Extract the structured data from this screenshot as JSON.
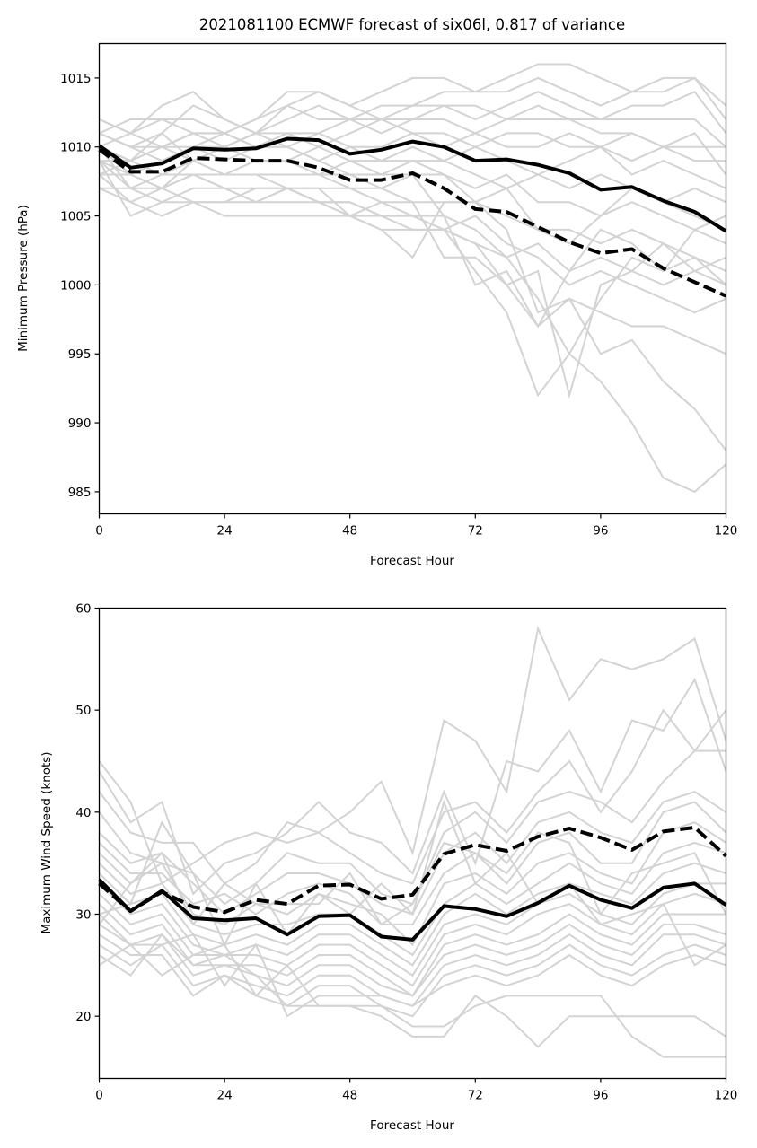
{
  "chart_data": [
    {
      "type": "line",
      "title": "2021081100 ECMWF forecast of six06l, 0.817 of variance",
      "xlabel": "Forecast Hour",
      "ylabel": "Minimum Pressure (hPa)",
      "xlim": [
        0,
        120
      ],
      "ylim": [
        983.4,
        1017.5
      ],
      "xticks": [
        0,
        24,
        48,
        72,
        96,
        120
      ],
      "yticks": [
        985,
        990,
        995,
        1000,
        1005,
        1010,
        1015
      ],
      "grid": false,
      "x": [
        0,
        6,
        12,
        18,
        24,
        30,
        36,
        42,
        48,
        54,
        60,
        66,
        72,
        78,
        84,
        90,
        96,
        102,
        108,
        114,
        120
      ],
      "series": [
        {
          "name": "solid",
          "style": "solid",
          "color": "#000000",
          "values": [
            1010.1,
            1008.5,
            1008.8,
            1009.9,
            1009.8,
            1009.9,
            1010.6,
            1010.5,
            1009.5,
            1009.8,
            1010.4,
            1010.0,
            1009.0,
            1009.1,
            1008.7,
            1008.1,
            1006.9,
            1007.1,
            1006.1,
            1005.3,
            1003.9
          ]
        },
        {
          "name": "dashed",
          "style": "dashed",
          "color": "#000000",
          "values": [
            1009.8,
            1008.2,
            1008.2,
            1009.2,
            1009.1,
            1009.0,
            1009.0,
            1008.5,
            1007.6,
            1007.6,
            1008.1,
            1007.0,
            1005.5,
            1005.3,
            1004.2,
            1003.1,
            1002.3,
            1002.6,
            1001.2,
            1000.2,
            999.2
          ]
        }
      ],
      "ensemble_color": "#d3d3d3",
      "ensemble": [
        [
          1012,
          1011,
          1013,
          1014,
          1012,
          1011,
          1013,
          1014,
          1013,
          1012,
          1013,
          1014,
          1014,
          1015,
          1016,
          1016,
          1015,
          1014,
          1014,
          1015,
          1013
        ],
        [
          1011,
          1012,
          1012,
          1012,
          1011,
          1012,
          1014,
          1014,
          1013,
          1014,
          1015,
          1015,
          1014,
          1014,
          1015,
          1014,
          1013,
          1014,
          1015,
          1015,
          1012
        ],
        [
          1011,
          1010,
          1011,
          1013,
          1012,
          1011,
          1012,
          1013,
          1012,
          1013,
          1013,
          1013,
          1012,
          1013,
          1014,
          1013,
          1012,
          1013,
          1013,
          1014,
          1011
        ],
        [
          1010,
          1011,
          1012,
          1011,
          1011,
          1012,
          1013,
          1012,
          1012,
          1012,
          1012,
          1013,
          1013,
          1012,
          1012,
          1012,
          1012,
          1012,
          1012,
          1012,
          1010
        ],
        [
          1011,
          1010,
          1010,
          1011,
          1010,
          1011,
          1011,
          1011,
          1012,
          1011,
          1012,
          1012,
          1011,
          1012,
          1013,
          1012,
          1011,
          1011,
          1010,
          1010,
          1010
        ],
        [
          1009,
          1009,
          1010,
          1010,
          1011,
          1010,
          1011,
          1010,
          1011,
          1012,
          1011,
          1011,
          1010,
          1011,
          1011,
          1010,
          1010,
          1011,
          1010,
          1009,
          1009
        ],
        [
          1008,
          1009,
          1011,
          1009,
          1010,
          1011,
          1010,
          1011,
          1010,
          1010,
          1011,
          1010,
          1011,
          1010,
          1010,
          1011,
          1010,
          1009,
          1010,
          1011,
          1008
        ],
        [
          1010,
          1008,
          1009,
          1010,
          1009,
          1010,
          1010,
          1009,
          1010,
          1009,
          1010,
          1009,
          1010,
          1009,
          1008,
          1009,
          1010,
          1008,
          1009,
          1008,
          1007
        ],
        [
          1009,
          1007,
          1008,
          1008,
          1008,
          1009,
          1009,
          1008,
          1009,
          1008,
          1009,
          1009,
          1008,
          1007,
          1008,
          1007,
          1008,
          1007,
          1006,
          1007,
          1006
        ],
        [
          1008,
          1008,
          1007,
          1009,
          1008,
          1008,
          1008,
          1008,
          1008,
          1007,
          1008,
          1008,
          1007,
          1008,
          1006,
          1006,
          1005,
          1006,
          1005,
          1004,
          1003
        ],
        [
          1007,
          1007,
          1006,
          1007,
          1007,
          1006,
          1007,
          1007,
          1007,
          1006,
          1006,
          1006,
          1006,
          1005,
          1004,
          1004,
          1003,
          1004,
          1003,
          1002,
          1001
        ],
        [
          1008,
          1006,
          1005,
          1006,
          1006,
          1007,
          1007,
          1006,
          1006,
          1005,
          1005,
          1004,
          1003,
          1002,
          1003,
          1001,
          1002,
          1001,
          1000,
          1001,
          1000
        ],
        [
          1009,
          1005,
          1006,
          1006,
          1005,
          1005,
          1005,
          1005,
          1005,
          1005,
          1004,
          1004,
          1005,
          1003,
          1002,
          1000,
          1001,
          1000,
          999,
          998,
          999
        ],
        [
          1007,
          1006,
          1007,
          1006,
          1006,
          1006,
          1006,
          1006,
          1005,
          1004,
          1004,
          1004,
          1003,
          1000,
          997,
          999,
          998,
          997,
          997,
          996,
          995
        ],
        [
          1010,
          1007,
          1007,
          1008,
          1007,
          1006,
          1007,
          1006,
          1006,
          1005,
          1005,
          1005,
          1004,
          1002,
          999,
          995,
          993,
          990,
          986,
          985,
          987
        ],
        [
          1009,
          1008,
          1007,
          1008,
          1007,
          1007,
          1007,
          1006,
          1005,
          1004,
          1002,
          1006,
          1006,
          1004,
          998,
          999,
          995,
          996,
          993,
          991,
          988
        ],
        [
          1010,
          1009,
          1008,
          1009,
          1008,
          1008,
          1007,
          1007,
          1005,
          1006,
          1005,
          1004,
          1001,
          998,
          992,
          995,
          999,
          1002,
          1001,
          1002,
          1000
        ],
        [
          1011,
          1010,
          1009,
          1010,
          1010,
          1009,
          1009,
          1008,
          1007,
          1007,
          1006,
          1002,
          1002,
          1000,
          1001,
          992,
          1000,
          1001,
          1003,
          1001,
          1002
        ],
        [
          1012,
          1011,
          1010,
          1011,
          1011,
          1010,
          1010,
          1009,
          1008,
          1008,
          1008,
          1005,
          1000,
          1001,
          997,
          1001,
          1004,
          1003,
          1001,
          1004,
          1005
        ],
        [
          1010,
          1009,
          1010,
          1009,
          1010,
          1009,
          1009,
          1010,
          1009,
          1009,
          1009,
          1008,
          1006,
          1007,
          1004,
          1003,
          1005,
          1007,
          1006,
          1005,
          1004
        ]
      ]
    },
    {
      "type": "line",
      "title": "",
      "xlabel": "Forecast Hour",
      "ylabel": "Maximum Wind Speed (knots)",
      "xlim": [
        0,
        120
      ],
      "ylim": [
        13.9,
        60
      ],
      "xticks": [
        0,
        24,
        48,
        72,
        96,
        120
      ],
      "yticks": [
        20,
        30,
        40,
        50,
        60
      ],
      "grid": false,
      "x": [
        0,
        6,
        12,
        18,
        24,
        30,
        36,
        42,
        48,
        54,
        60,
        66,
        72,
        78,
        84,
        90,
        96,
        102,
        108,
        114,
        120
      ],
      "series": [
        {
          "name": "solid",
          "style": "solid",
          "color": "#000000",
          "values": [
            33.4,
            30.3,
            32.3,
            29.6,
            29.4,
            29.6,
            28.0,
            29.8,
            29.9,
            27.8,
            27.5,
            30.8,
            30.5,
            29.8,
            31.1,
            32.8,
            31.4,
            30.6,
            32.6,
            33.0,
            30.9
          ]
        },
        {
          "name": "dashed",
          "style": "dashed",
          "color": "#000000",
          "values": [
            33.0,
            30.3,
            32.2,
            30.7,
            30.2,
            31.4,
            31.0,
            32.8,
            32.9,
            31.5,
            31.9,
            35.9,
            36.8,
            36.2,
            37.6,
            38.4,
            37.5,
            36.3,
            38.1,
            38.5,
            35.7
          ]
        }
      ],
      "ensemble_color": "#d3d3d3",
      "ensemble": [
        [
          45,
          41,
          33,
          35,
          37,
          38,
          37,
          38,
          40,
          43,
          36,
          49,
          47,
          42,
          58,
          51,
          55,
          54,
          55,
          57,
          47
        ],
        [
          44,
          39,
          41,
          32,
          35,
          36,
          38,
          41,
          38,
          37,
          34,
          42,
          35,
          45,
          44,
          48,
          42,
          49,
          48,
          53,
          44
        ],
        [
          42,
          38,
          37,
          37,
          33,
          35,
          39,
          38,
          36,
          34,
          33,
          40,
          41,
          38,
          42,
          45,
          40,
          44,
          50,
          46,
          50
        ],
        [
          40,
          36,
          35,
          34,
          31,
          33,
          36,
          35,
          35,
          32,
          31,
          38,
          40,
          37,
          41,
          42,
          41,
          39,
          43,
          46,
          46
        ],
        [
          38,
          35,
          36,
          33,
          30,
          32,
          34,
          34,
          33,
          31,
          30,
          36,
          38,
          35,
          39,
          40,
          38,
          37,
          41,
          42,
          40
        ],
        [
          37,
          34,
          34,
          31,
          32,
          30,
          32,
          33,
          32,
          29,
          29,
          34,
          36,
          33,
          37,
          38,
          35,
          35,
          40,
          41,
          38
        ],
        [
          36,
          33,
          35,
          30,
          29,
          31,
          30,
          32,
          31,
          30,
          27,
          33,
          34,
          32,
          35,
          36,
          34,
          33,
          38,
          39,
          37
        ],
        [
          35,
          32,
          33,
          29,
          28,
          29,
          29,
          30,
          30,
          28,
          26,
          31,
          33,
          31,
          33,
          35,
          33,
          32,
          36,
          37,
          36
        ],
        [
          34,
          31,
          32,
          28,
          27,
          28,
          27,
          29,
          29,
          27,
          25,
          30,
          32,
          30,
          32,
          33,
          32,
          31,
          34,
          35,
          34
        ],
        [
          33,
          30,
          31,
          27,
          26,
          27,
          26,
          28,
          28,
          26,
          24,
          29,
          30,
          29,
          31,
          32,
          30,
          29,
          32,
          33,
          33
        ],
        [
          32,
          29,
          30,
          26,
          26,
          26,
          25,
          27,
          27,
          25,
          23,
          28,
          29,
          28,
          30,
          31,
          29,
          28,
          31,
          32,
          31
        ],
        [
          31,
          28,
          29,
          25,
          25,
          25,
          24,
          26,
          26,
          24,
          22,
          27,
          28,
          27,
          28,
          30,
          28,
          27,
          30,
          30,
          30
        ],
        [
          30,
          27,
          28,
          24,
          25,
          24,
          23,
          25,
          25,
          23,
          22,
          26,
          27,
          26,
          27,
          29,
          27,
          26,
          29,
          29,
          28
        ],
        [
          29,
          27,
          27,
          23,
          24,
          23,
          22,
          24,
          24,
          22,
          21,
          25,
          26,
          25,
          26,
          28,
          26,
          25,
          28,
          28,
          27
        ],
        [
          28,
          26,
          26,
          22,
          24,
          22,
          21,
          23,
          23,
          21,
          20,
          24,
          25,
          24,
          25,
          27,
          25,
          24,
          26,
          27,
          26
        ],
        [
          27,
          25,
          27,
          28,
          23,
          27,
          20,
          22,
          22,
          22,
          21,
          23,
          24,
          23,
          24,
          26,
          24,
          23,
          25,
          26,
          25
        ],
        [
          26,
          24,
          28,
          25,
          26,
          24,
          21,
          21,
          21,
          20,
          18,
          18,
          22,
          20,
          17,
          20,
          20,
          20,
          20,
          20,
          18
        ],
        [
          25,
          27,
          24,
          26,
          27,
          22,
          25,
          21,
          21,
          21,
          19,
          19,
          21,
          22,
          22,
          22,
          22,
          18,
          16,
          16,
          16
        ],
        [
          30,
          31,
          39,
          34,
          27,
          33,
          28,
          32,
          30,
          33,
          30,
          41,
          33,
          36,
          31,
          33,
          29,
          30,
          31,
          25,
          27
        ],
        [
          29,
          33,
          36,
          29,
          33,
          31,
          31,
          31,
          34,
          29,
          31,
          37,
          36,
          34,
          38,
          37,
          30,
          34,
          35,
          36,
          30
        ]
      ]
    }
  ]
}
